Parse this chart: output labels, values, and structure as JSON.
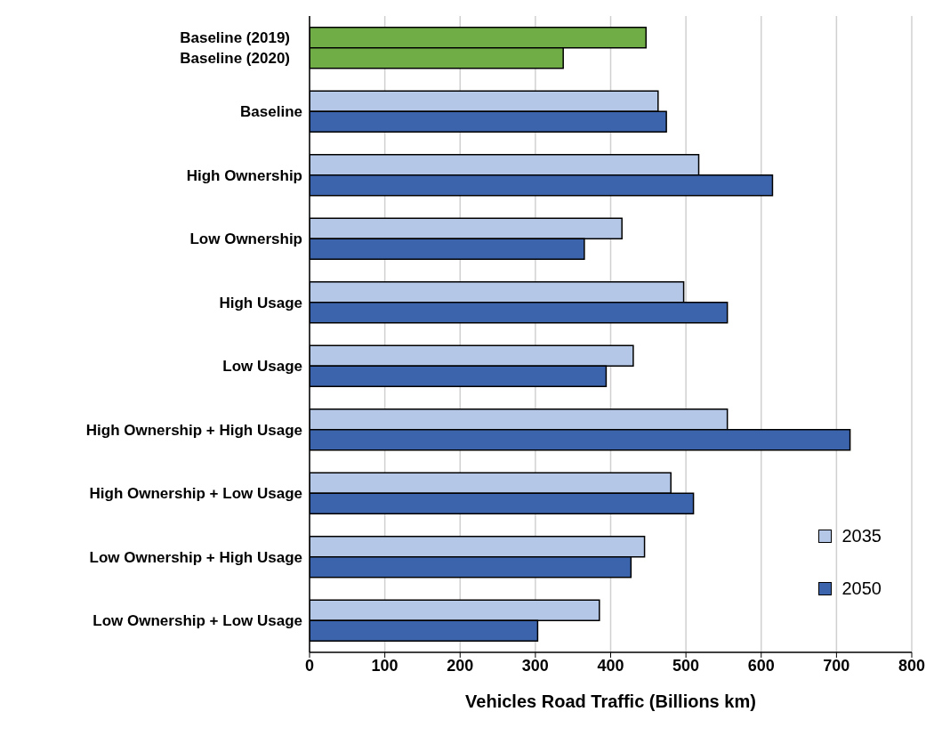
{
  "chart_data": {
    "type": "bar",
    "orientation": "horizontal",
    "categories": [
      null,
      "Baseline",
      "High Ownership",
      "Low Ownership",
      "High Usage",
      "Low Usage",
      "High Ownership + High Usage",
      "High Ownership + Low Usage",
      "Low Ownership + High Usage",
      "Low Ownership + Low Usage"
    ],
    "series": [
      {
        "name": "Baseline (2019)",
        "color": "#70ad47",
        "values": [
          447,
          null,
          null,
          null,
          null,
          null,
          null,
          null,
          null,
          null
        ]
      },
      {
        "name": "Baseline (2020)",
        "color": "#70ad47",
        "values": [
          337,
          null,
          null,
          null,
          null,
          null,
          null,
          null,
          null,
          null
        ]
      },
      {
        "name": "2035",
        "color": "#b4c7e7",
        "values": [
          null,
          463,
          517,
          415,
          497,
          430,
          555,
          480,
          445,
          385
        ]
      },
      {
        "name": "2050",
        "color": "#3c64ad",
        "values": [
          null,
          474,
          615,
          365,
          555,
          394,
          718,
          510,
          427,
          303
        ]
      }
    ],
    "xlabel": "Vehicles Road Traffic (Billions km)",
    "xlim": [
      0,
      800
    ],
    "xticks": [
      0,
      100,
      200,
      300,
      400,
      500,
      600,
      700,
      800
    ],
    "grid": "x",
    "legend": "bottom right"
  }
}
